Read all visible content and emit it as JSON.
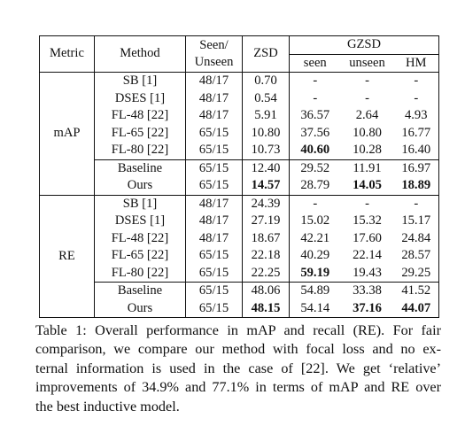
{
  "header": {
    "metric": "Metric",
    "method": "Method",
    "seen_unseen_1": "Seen/",
    "seen_unseen_2": "Unseen",
    "zsd": "ZSD",
    "gzsd": "GZSD",
    "seen": "seen",
    "unseen": "unseen",
    "hm": "HM"
  },
  "groups": [
    {
      "metric": "mAP",
      "rows": [
        {
          "method": "SB [1]",
          "split": "48/17",
          "zsd": "0.70",
          "seen": "-",
          "unseen": "-",
          "hm": "-"
        },
        {
          "method": "DSES [1]",
          "split": "48/17",
          "zsd": "0.54",
          "seen": "-",
          "unseen": "-",
          "hm": "-"
        },
        {
          "method": "FL-48 [22]",
          "split": "48/17",
          "zsd": "5.91",
          "seen": "36.57",
          "unseen": "2.64",
          "hm": "4.93"
        },
        {
          "method": "FL-65 [22]",
          "split": "65/15",
          "zsd": "10.80",
          "seen": "37.56",
          "unseen": "10.80",
          "hm": "16.77"
        },
        {
          "method": "FL-80 [22]",
          "split": "65/15",
          "zsd": "10.73",
          "seen": "40.60",
          "unseen": "10.28",
          "hm": "16.40"
        },
        {
          "method": "Baseline",
          "split": "65/15",
          "zsd": "12.40",
          "seen": "29.52",
          "unseen": "11.91",
          "hm": "16.97"
        },
        {
          "method": "Ours",
          "split": "65/15",
          "zsd": "14.57",
          "seen": "28.79",
          "unseen": "14.05",
          "hm": "18.89"
        }
      ]
    },
    {
      "metric": "RE",
      "rows": [
        {
          "method": "SB [1]",
          "split": "48/17",
          "zsd": "24.39",
          "seen": "-",
          "unseen": "-",
          "hm": "-"
        },
        {
          "method": "DSES [1]",
          "split": "48/17",
          "zsd": "27.19",
          "seen": "15.02",
          "unseen": "15.32",
          "hm": "15.17"
        },
        {
          "method": "FL-48 [22]",
          "split": "48/17",
          "zsd": "18.67",
          "seen": "42.21",
          "unseen": "17.60",
          "hm": "24.84"
        },
        {
          "method": "FL-65 [22]",
          "split": "65/15",
          "zsd": "22.18",
          "seen": "40.29",
          "unseen": "22.14",
          "hm": "28.57"
        },
        {
          "method": "FL-80 [22]",
          "split": "65/15",
          "zsd": "22.25",
          "seen": "59.19",
          "unseen": "19.43",
          "hm": "29.25"
        },
        {
          "method": "Baseline",
          "split": "65/15",
          "zsd": "48.06",
          "seen": "54.89",
          "unseen": "33.38",
          "hm": "41.52"
        },
        {
          "method": "Ours",
          "split": "65/15",
          "zsd": "48.15",
          "seen": "54.14",
          "unseen": "37.16",
          "hm": "44.07"
        }
      ]
    }
  ],
  "caption": {
    "line1": "Table 1: Overall performance in mAP and recall (RE). For fair",
    "line2": "comparison, we compare our method with focal loss and no ex-",
    "line3": "ternal information is used in the case of [22]. We get ‘relative’",
    "line4": "improvements of 34.9% and 77.1% in terms of mAP and RE over",
    "line5": "the best inductive model."
  }
}
